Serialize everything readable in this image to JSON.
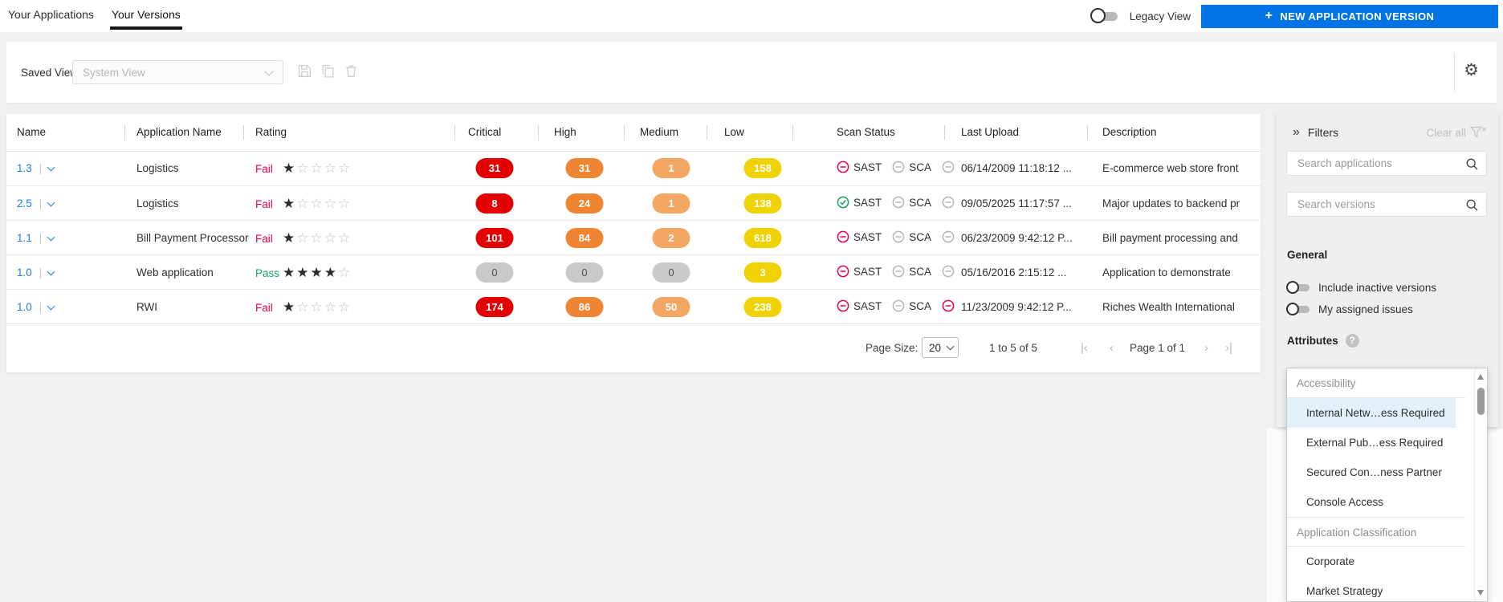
{
  "header": {
    "tabs": [
      {
        "label": "Your Applications",
        "active": false
      },
      {
        "label": "Your Versions",
        "active": true
      }
    ],
    "legacy_label": "Legacy View",
    "legacy_toggle_on": false,
    "new_button_plus": "+",
    "new_button_label": "NEW APPLICATION VERSION"
  },
  "saved_views": {
    "label": "Saved Views",
    "placeholder": "System View",
    "action_icons": [
      "save-icon",
      "copy-icon",
      "delete-icon"
    ],
    "settings_icon": "gear-icon"
  },
  "table": {
    "columns": [
      "Name",
      "Application Name",
      "Rating",
      "Critical",
      "High",
      "Medium",
      "Low",
      "Scan Status",
      "Last Upload",
      "Description"
    ],
    "rows": [
      {
        "version": "1.3",
        "application": "Logistics",
        "rating": "Fail",
        "stars": 1,
        "counts": {
          "critical": "31",
          "high": "31",
          "medium": "1",
          "low": "158"
        },
        "scan": [
          {
            "label": "SAST",
            "state": "fail"
          },
          {
            "label": "SCA",
            "state": "none"
          },
          {
            "label": "",
            "state": "none"
          }
        ],
        "last_upload": "06/14/2009 11:18:12 ...",
        "description": "E-commerce web store front"
      },
      {
        "version": "2.5",
        "application": "Logistics",
        "rating": "Fail",
        "stars": 1,
        "counts": {
          "critical": "8",
          "high": "24",
          "medium": "1",
          "low": "138"
        },
        "scan": [
          {
            "label": "SAST",
            "state": "pass"
          },
          {
            "label": "SCA",
            "state": "none"
          },
          {
            "label": "",
            "state": "none"
          }
        ],
        "last_upload": "09/05/2025 11:17:57 ...",
        "description": "Major updates to backend pr"
      },
      {
        "version": "1.1",
        "application": "Bill Payment Processor",
        "rating": "Fail",
        "stars": 1,
        "counts": {
          "critical": "101",
          "high": "84",
          "medium": "2",
          "low": "618"
        },
        "scan": [
          {
            "label": "SAST",
            "state": "fail"
          },
          {
            "label": "SCA",
            "state": "none"
          },
          {
            "label": "",
            "state": "none"
          }
        ],
        "last_upload": "06/23/2009 9:42:12 P...",
        "description": "Bill payment processing and"
      },
      {
        "version": "1.0",
        "application": "Web application",
        "rating": "Pass",
        "stars": 4,
        "counts": {
          "critical": "0",
          "high": "0",
          "medium": "0",
          "low": "3"
        },
        "scan": [
          {
            "label": "SAST",
            "state": "fail"
          },
          {
            "label": "SCA",
            "state": "none"
          },
          {
            "label": "",
            "state": "none"
          }
        ],
        "last_upload": "05/16/2016 2:15:12 ...",
        "description": "Application to demonstrate"
      },
      {
        "version": "1.0",
        "application": "RWI",
        "rating": "Fail",
        "stars": 1,
        "counts": {
          "critical": "174",
          "high": "86",
          "medium": "50",
          "low": "238"
        },
        "scan": [
          {
            "label": "SAST",
            "state": "fail"
          },
          {
            "label": "SCA",
            "state": "none"
          },
          {
            "label": "",
            "state": "fail"
          }
        ],
        "last_upload": "11/23/2009 9:42:12 P...",
        "description": "Riches Wealth International"
      }
    ],
    "footer": {
      "page_size_label": "Page Size:",
      "page_size_value": "20",
      "range_text": "1 to 5 of 5",
      "page_text": "Page 1 of 1",
      "pager_icons": [
        "first-page-icon",
        "prev-page-icon",
        "next-page-icon",
        "last-page-icon"
      ]
    }
  },
  "filters": {
    "title": "Filters",
    "collapse_icon": "double-chevron-right",
    "clear_all": "Clear all",
    "clear_all_icon": "funnel-x-icon",
    "search_applications_placeholder": "Search applications",
    "search_versions_placeholder": "Search versions",
    "general": {
      "title": "General",
      "toggles": [
        {
          "label": "Include inactive versions",
          "on": false
        },
        {
          "label": "My assigned issues",
          "on": false
        }
      ]
    },
    "attributes": {
      "title": "Attributes",
      "help_glyph": "?",
      "groups": [
        {
          "name": "Accessibility",
          "items": [
            {
              "label": "Internal Netw…ess Required",
              "selected": true
            },
            {
              "label": "External Pub…ess Required",
              "selected": false
            },
            {
              "label": "Secured Con…ness Partner",
              "selected": false
            },
            {
              "label": "Console Access",
              "selected": false
            }
          ]
        },
        {
          "name": "Application Classification",
          "items": [
            {
              "label": "Corporate",
              "selected": false
            },
            {
              "label": "Market Strategy",
              "selected": false
            }
          ]
        }
      ]
    }
  },
  "colors": {
    "accent_blue": "#0073e7",
    "link_blue": "#1a7fe8",
    "critical": "#e30000",
    "high": "#ef8532",
    "medium": "#f4a762",
    "low": "#eed202",
    "zero_badge": "#c9c9c9",
    "fail": "#e5004c",
    "pass": "#17a25f",
    "selected_item_bg": "#e2f0fa"
  }
}
